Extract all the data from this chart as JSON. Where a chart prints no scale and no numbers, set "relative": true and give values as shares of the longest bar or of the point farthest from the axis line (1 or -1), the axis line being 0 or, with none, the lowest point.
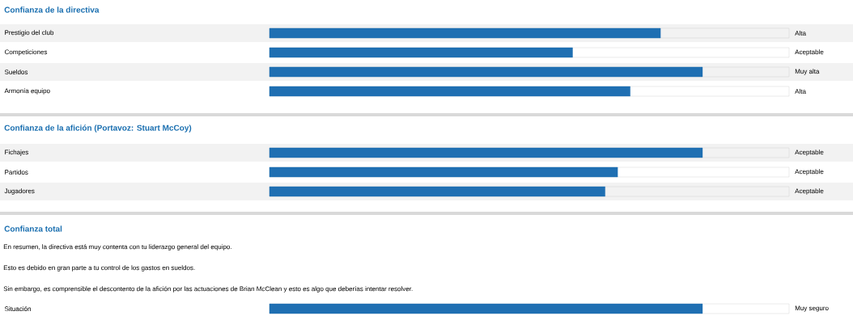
{
  "chart_data": [
    {
      "type": "bar",
      "orientation": "horizontal",
      "relative": true,
      "title": "Confianza de la directiva",
      "categories": [
        "Prestigio del club",
        "Competiciones",
        "Sueldos",
        "Armonía equipo"
      ],
      "values": [
        0.903,
        0.7,
        1,
        0.833
      ],
      "annotations": [
        "Alta",
        "Aceptable",
        "Muy alta",
        "Alta"
      ],
      "color": "#1f6fb2"
    },
    {
      "type": "bar",
      "orientation": "horizontal",
      "relative": true,
      "title": "Confianza de la afición (Portavoz: Stuart McCoy)",
      "categories": [
        "Fichajes",
        "Partidos",
        "Jugadores"
      ],
      "values": [
        1,
        0.804,
        0.775
      ],
      "annotations": [
        "Aceptable",
        "Aceptable",
        "Aceptable"
      ],
      "color": "#1f6fb2"
    },
    {
      "type": "bar",
      "orientation": "horizontal",
      "relative": true,
      "title": "Confianza total",
      "annotations": [
        "En resumen, la directiva está muy contenta con tu liderazgo general del equipo.",
        "Esto es debido en gran parte a tu control de los gastos en sueldos.",
        "Sin embargo, es comprensible el descontento de la afición por las actuaciones de Brian McClean y esto es algo que deberías intentar resolver.",
        "Muy seguro"
      ],
      "categories": [
        "Situación"
      ],
      "values": [
        1
      ],
      "color": "#1f6fb2"
    }
  ]
}
